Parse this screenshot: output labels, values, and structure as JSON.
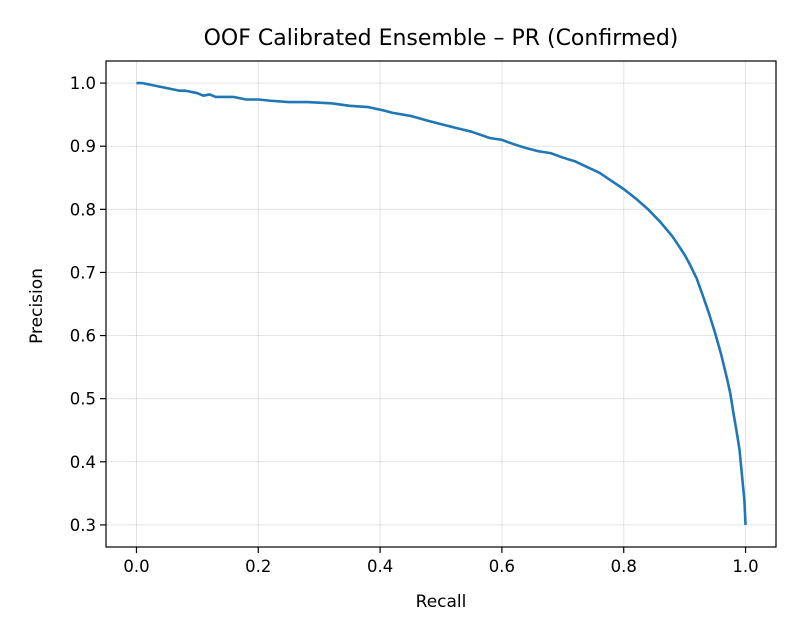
{
  "chart_data": {
    "type": "line",
    "title": "OOF Calibrated Ensemble – PR (Confirmed)",
    "xlabel": "Recall",
    "ylabel": "Precision",
    "xlim": [
      -0.05,
      1.05
    ],
    "ylim": [
      0.265,
      1.035
    ],
    "xticks": [
      0.0,
      0.2,
      0.4,
      0.6,
      0.8,
      1.0
    ],
    "xtick_labels": [
      "0.0",
      "0.2",
      "0.4",
      "0.6",
      "0.8",
      "1.0"
    ],
    "yticks": [
      0.3,
      0.4,
      0.5,
      0.6,
      0.7,
      0.8,
      0.9,
      1.0
    ],
    "ytick_labels": [
      "0.3",
      "0.4",
      "0.5",
      "0.6",
      "0.7",
      "0.8",
      "0.9",
      "1.0"
    ],
    "grid": true,
    "color": "#1f77b4",
    "series": [
      {
        "x": [
          0.0,
          0.01,
          0.03,
          0.05,
          0.07,
          0.08,
          0.1,
          0.11,
          0.12,
          0.13,
          0.16,
          0.18,
          0.2,
          0.22,
          0.25,
          0.28,
          0.3,
          0.32,
          0.35,
          0.38,
          0.4,
          0.42,
          0.45,
          0.48,
          0.5,
          0.52,
          0.55,
          0.58,
          0.6,
          0.62,
          0.64,
          0.66,
          0.68,
          0.7,
          0.72,
          0.74,
          0.76,
          0.78,
          0.8,
          0.82,
          0.84,
          0.86,
          0.88,
          0.9,
          0.91,
          0.92,
          0.93,
          0.94,
          0.95,
          0.96,
          0.965,
          0.97,
          0.975,
          0.98,
          0.985,
          0.99,
          0.993,
          0.996,
          0.998,
          0.999,
          1.0
        ],
        "y": [
          1.0,
          1.0,
          0.996,
          0.992,
          0.988,
          0.988,
          0.984,
          0.98,
          0.982,
          0.978,
          0.978,
          0.974,
          0.974,
          0.972,
          0.97,
          0.97,
          0.969,
          0.968,
          0.964,
          0.962,
          0.958,
          0.953,
          0.948,
          0.94,
          0.935,
          0.93,
          0.923,
          0.913,
          0.91,
          0.903,
          0.897,
          0.892,
          0.889,
          0.882,
          0.876,
          0.867,
          0.858,
          0.845,
          0.832,
          0.817,
          0.8,
          0.78,
          0.757,
          0.728,
          0.71,
          0.69,
          0.663,
          0.635,
          0.604,
          0.57,
          0.55,
          0.53,
          0.508,
          0.478,
          0.45,
          0.42,
          0.39,
          0.36,
          0.34,
          0.32,
          0.3
        ]
      }
    ]
  }
}
